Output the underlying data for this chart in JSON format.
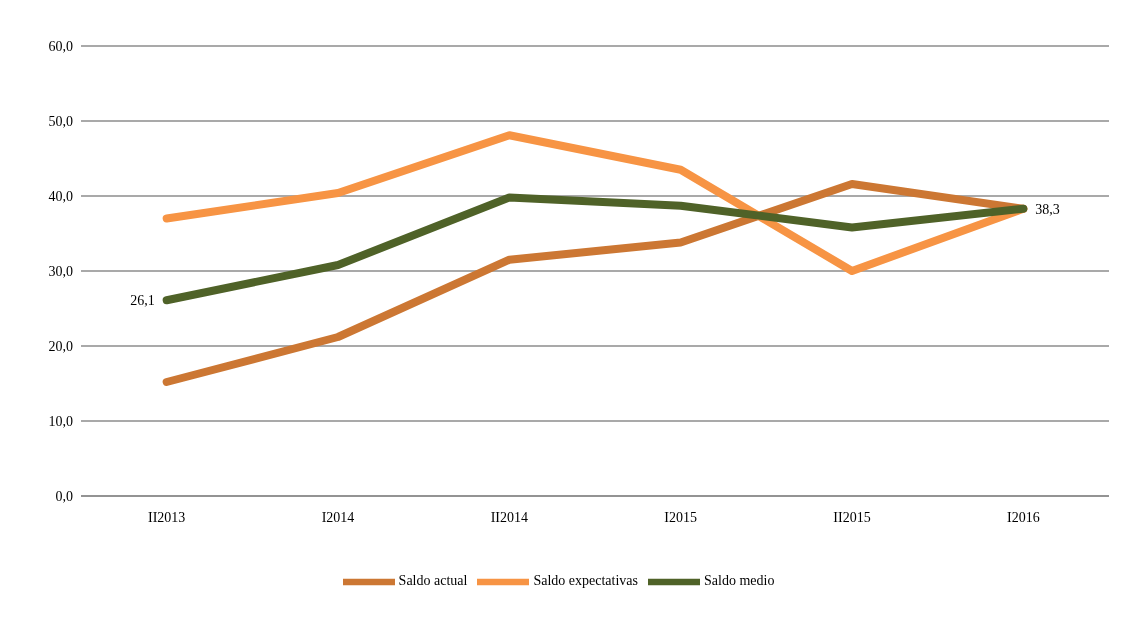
{
  "chart_data": {
    "type": "line",
    "categories": [
      "II2013",
      "I2014",
      "II2014",
      "I2015",
      "II2015",
      "I2016"
    ],
    "series": [
      {
        "name": "Saldo actual",
        "color": "#cc7733",
        "values": [
          15.2,
          21.2,
          31.5,
          33.8,
          41.6,
          38.3
        ]
      },
      {
        "name": "Saldo expectativas",
        "color": "#f79444",
        "values": [
          37.0,
          40.4,
          48.1,
          43.5,
          30.0,
          38.3
        ]
      },
      {
        "name": "Saldo medio",
        "color": "#4f6228",
        "values": [
          26.1,
          30.8,
          39.8,
          38.7,
          35.8,
          38.3
        ],
        "value_labels": [
          "26,1",
          null,
          null,
          null,
          null,
          "38,3"
        ]
      }
    ],
    "ylim": [
      0,
      60
    ],
    "yticks": [
      {
        "value": 0,
        "label": "0,0"
      },
      {
        "value": 10,
        "label": "10,0"
      },
      {
        "value": 20,
        "label": "20,0"
      },
      {
        "value": 30,
        "label": "30,0"
      },
      {
        "value": 40,
        "label": "40,0"
      },
      {
        "value": 50,
        "label": "50,0"
      },
      {
        "value": 60,
        "label": "60,0"
      }
    ],
    "grid": "y",
    "legend": "bottom",
    "marker": "none",
    "line_style": "solid"
  }
}
